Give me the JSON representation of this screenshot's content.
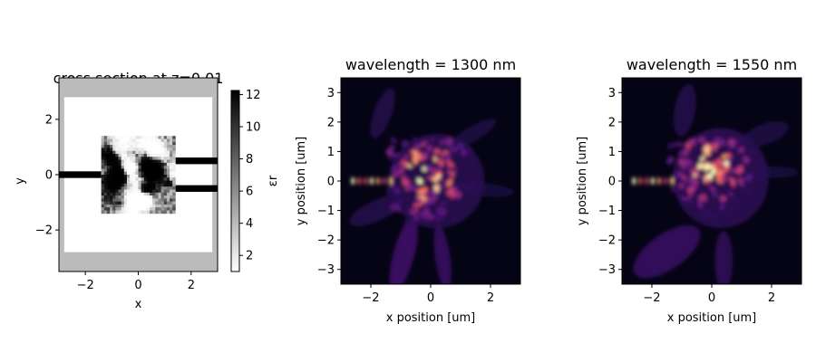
{
  "chart_data": [
    {
      "type": "heatmap",
      "title": "cross section at z=0.01",
      "xlabel": "x",
      "ylabel": "y",
      "xlim": [
        -3.0,
        3.0
      ],
      "ylim": [
        -3.5,
        3.5
      ],
      "xticks": [
        -2,
        0,
        2
      ],
      "yticks": [
        -2,
        0,
        2
      ],
      "colormap": "gray_r",
      "colorbar": {
        "label": "εr",
        "range": [
          1,
          12.25
        ],
        "ticks": [
          2,
          4,
          6,
          8,
          10,
          12
        ]
      },
      "structure": {
        "background_permittivity": 4.0,
        "clear_region": {
          "x": [
            -2.8,
            2.8
          ],
          "y": [
            -2.8,
            2.8
          ],
          "permittivity": 1.0
        },
        "design_region": {
          "x": [
            -1.4,
            1.4
          ],
          "y": [
            -1.4,
            1.4
          ]
        },
        "input_waveguide": {
          "x": [
            -3.0,
            -1.4
          ],
          "y": [
            -0.12,
            0.12
          ],
          "permittivity": 12.25
        },
        "output_waveguides": [
          {
            "x": [
              1.4,
              3.0
            ],
            "y": [
              0.38,
              0.62
            ],
            "permittivity": 12.25
          },
          {
            "x": [
              1.4,
              3.0
            ],
            "y": [
              -0.62,
              -0.38
            ],
            "permittivity": 12.25
          }
        ]
      }
    },
    {
      "type": "heatmap",
      "title": "wavelength = 1300 nm",
      "xlabel": "x position [um]",
      "ylabel": "y position [um]",
      "xlim": [
        -3.0,
        3.0
      ],
      "ylim": [
        -3.5,
        3.5
      ],
      "xticks": [
        -2,
        0,
        2
      ],
      "yticks": [
        -3,
        -2,
        -1,
        0,
        1,
        2,
        3
      ],
      "colormap": "magma",
      "wavelength_nm": 1300
    },
    {
      "type": "heatmap",
      "title": "wavelength = 1550 nm",
      "xlabel": "x position [um]",
      "ylabel": "y position [um]",
      "xlim": [
        -3.0,
        3.0
      ],
      "ylim": [
        -3.5,
        3.5
      ],
      "xticks": [
        -2,
        0,
        2
      ],
      "yticks": [
        -3,
        -2,
        -1,
        0,
        1,
        2,
        3
      ],
      "colormap": "magma",
      "wavelength_nm": 1550
    }
  ]
}
